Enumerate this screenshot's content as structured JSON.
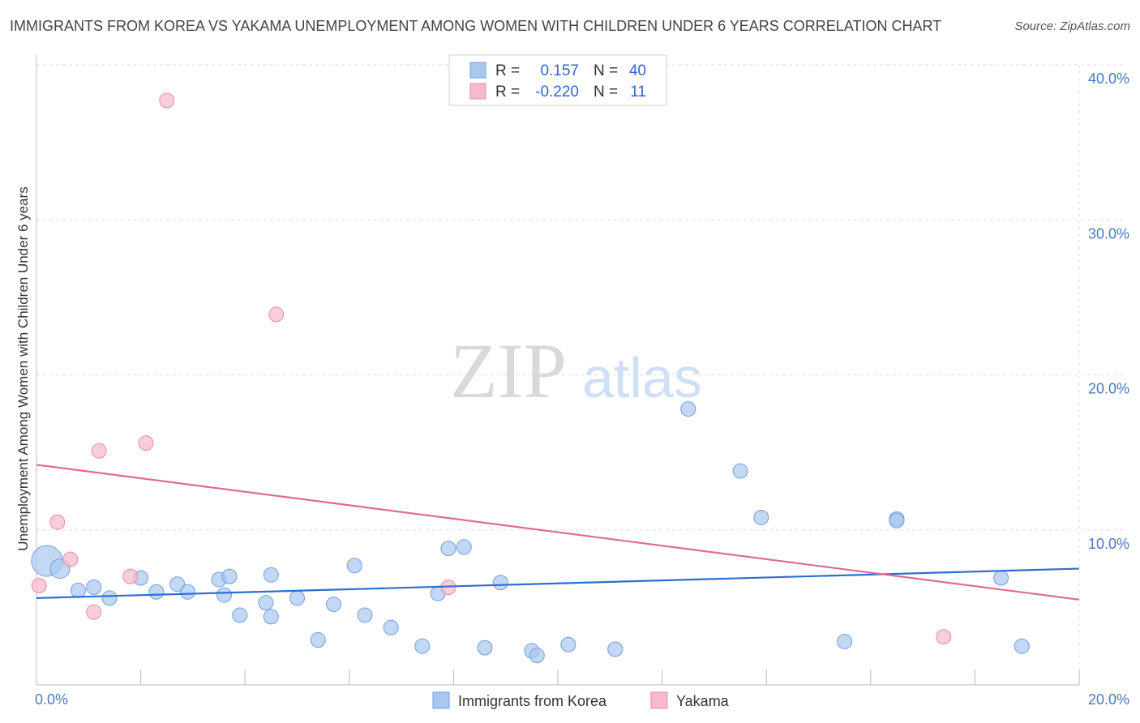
{
  "title": "IMMIGRANTS FROM KOREA VS YAKAMA UNEMPLOYMENT AMONG WOMEN WITH CHILDREN UNDER 6 YEARS CORRELATION CHART",
  "source": "Source: ZipAtlas.com",
  "watermark": {
    "zip": "ZIP",
    "atlas": "atlas"
  },
  "legend": {
    "rows": [
      {
        "r_label": "R =",
        "r_value": "0.157",
        "n_label": "N =",
        "n_value": "40",
        "color": "#a9c8f0",
        "border": "#6f9fe0"
      },
      {
        "r_label": "R =",
        "r_value": "-0.220",
        "n_label": "N =",
        "n_value": "11",
        "color": "#f7b9cc",
        "border": "#e88aa8"
      }
    ]
  },
  "colors": {
    "korea_fill": "#a9c8f0",
    "korea_stroke": "#6f9fe0",
    "korea_line": "#2c6fd1",
    "yakama_fill": "#f7b9cc",
    "yakama_stroke": "#e88aa8",
    "yakama_line": "#e06a96",
    "grid": "#dddddd",
    "axis_label": "#4a78c2"
  },
  "chart_data": {
    "type": "scatter",
    "title": "IMMIGRANTS FROM KOREA VS YAKAMA UNEMPLOYMENT AMONG WOMEN WITH CHILDREN UNDER 6 YEARS CORRELATION CHART",
    "xlabel": "",
    "ylabel": "Unemployment Among Women with Children Under 6 years",
    "xlim": [
      0,
      20
    ],
    "ylim": [
      0,
      40
    ],
    "x_tick_labels": [
      "0.0%",
      "20.0%"
    ],
    "y_ticks": [
      10,
      20,
      30,
      40
    ],
    "y_tick_labels": [
      "10.0%",
      "20.0%",
      "30.0%",
      "40.0%"
    ],
    "grid": true,
    "legend_placement": "bottom",
    "series": [
      {
        "name": "Immigrants from Korea",
        "r": 0.157,
        "n": 40,
        "trend": [
          [
            0,
            5.6
          ],
          [
            20,
            7.5
          ]
        ],
        "points": [
          {
            "x": 0.2,
            "y": 8.0,
            "s": 3
          },
          {
            "x": 0.45,
            "y": 7.5,
            "s": 2
          },
          {
            "x": 0.8,
            "y": 6.1,
            "s": 1
          },
          {
            "x": 1.1,
            "y": 6.3,
            "s": 1
          },
          {
            "x": 1.4,
            "y": 5.6,
            "s": 1
          },
          {
            "x": 2.0,
            "y": 6.9,
            "s": 1
          },
          {
            "x": 2.3,
            "y": 6.0,
            "s": 1
          },
          {
            "x": 2.7,
            "y": 6.5,
            "s": 1
          },
          {
            "x": 2.9,
            "y": 6.0,
            "s": 1
          },
          {
            "x": 3.5,
            "y": 6.8,
            "s": 1
          },
          {
            "x": 3.7,
            "y": 7.0,
            "s": 1
          },
          {
            "x": 3.6,
            "y": 5.8,
            "s": 1
          },
          {
            "x": 3.9,
            "y": 4.5,
            "s": 1
          },
          {
            "x": 4.4,
            "y": 5.3,
            "s": 1
          },
          {
            "x": 4.5,
            "y": 7.1,
            "s": 1
          },
          {
            "x": 4.5,
            "y": 4.4,
            "s": 1
          },
          {
            "x": 5.0,
            "y": 5.6,
            "s": 1
          },
          {
            "x": 5.4,
            "y": 2.9,
            "s": 1
          },
          {
            "x": 5.7,
            "y": 5.2,
            "s": 1
          },
          {
            "x": 6.1,
            "y": 7.7,
            "s": 1
          },
          {
            "x": 6.3,
            "y": 4.5,
            "s": 1
          },
          {
            "x": 6.8,
            "y": 3.7,
            "s": 1
          },
          {
            "x": 7.4,
            "y": 2.5,
            "s": 1
          },
          {
            "x": 7.7,
            "y": 5.9,
            "s": 1
          },
          {
            "x": 7.9,
            "y": 8.8,
            "s": 1
          },
          {
            "x": 8.2,
            "y": 8.9,
            "s": 1
          },
          {
            "x": 8.6,
            "y": 2.4,
            "s": 1
          },
          {
            "x": 8.9,
            "y": 6.6,
            "s": 1
          },
          {
            "x": 9.5,
            "y": 2.2,
            "s": 1
          },
          {
            "x": 9.6,
            "y": 1.9,
            "s": 1
          },
          {
            "x": 10.2,
            "y": 2.6,
            "s": 1
          },
          {
            "x": 11.1,
            "y": 2.3,
            "s": 1
          },
          {
            "x": 12.5,
            "y": 17.8,
            "s": 1
          },
          {
            "x": 13.5,
            "y": 13.8,
            "s": 1
          },
          {
            "x": 13.9,
            "y": 10.8,
            "s": 1
          },
          {
            "x": 15.5,
            "y": 2.8,
            "s": 1
          },
          {
            "x": 16.5,
            "y": 10.7,
            "s": 1
          },
          {
            "x": 16.5,
            "y": 10.6,
            "s": 1
          },
          {
            "x": 18.5,
            "y": 6.9,
            "s": 1
          },
          {
            "x": 18.9,
            "y": 2.5,
            "s": 1
          }
        ]
      },
      {
        "name": "Yakama",
        "r": -0.22,
        "n": 11,
        "trend": [
          [
            0,
            14.2
          ],
          [
            20,
            5.5
          ]
        ],
        "points": [
          {
            "x": 0.05,
            "y": 6.4,
            "s": 1
          },
          {
            "x": 0.4,
            "y": 10.5,
            "s": 1
          },
          {
            "x": 0.65,
            "y": 8.1,
            "s": 1
          },
          {
            "x": 1.1,
            "y": 4.7,
            "s": 1
          },
          {
            "x": 1.2,
            "y": 15.1,
            "s": 1
          },
          {
            "x": 1.8,
            "y": 7.0,
            "s": 1
          },
          {
            "x": 2.1,
            "y": 15.6,
            "s": 1
          },
          {
            "x": 2.5,
            "y": 37.7,
            "s": 1
          },
          {
            "x": 4.6,
            "y": 23.9,
            "s": 1
          },
          {
            "x": 7.9,
            "y": 6.3,
            "s": 1
          },
          {
            "x": 17.4,
            "y": 3.1,
            "s": 1
          }
        ]
      }
    ]
  }
}
